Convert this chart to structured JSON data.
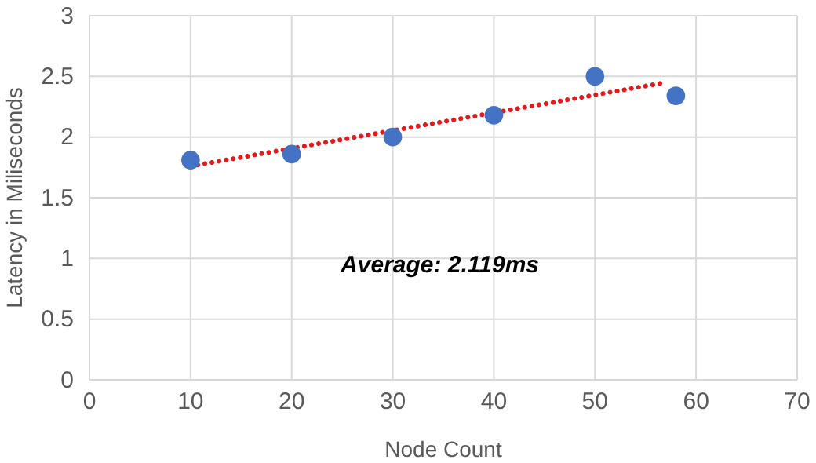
{
  "chart_data": {
    "type": "scatter",
    "xlabel": "Node Count",
    "ylabel": "Latency in Miliseconds",
    "annotations": [
      "Average: 2.119ms"
    ],
    "series": [
      {
        "color": "#4472c4",
        "x": [
          10,
          20,
          30,
          40,
          50,
          58
        ],
        "values": [
          1.81,
          1.86,
          2.0,
          2.18,
          2.5,
          2.34
        ],
        "marker": "circle"
      },
      {
        "type": "line",
        "color": "#e31a1c",
        "x": [
          10,
          57
        ],
        "values": [
          1.76,
          2.45
        ],
        "line_style": "dotted",
        "marker": "none"
      }
    ],
    "xlim": [
      0,
      70
    ],
    "xticks": [
      0,
      10,
      20,
      30,
      40,
      50,
      60,
      70
    ],
    "ylim": [
      0,
      3
    ],
    "yticks": [
      0,
      0.5,
      1,
      1.5,
      2,
      2.5,
      3
    ],
    "grid": true
  }
}
